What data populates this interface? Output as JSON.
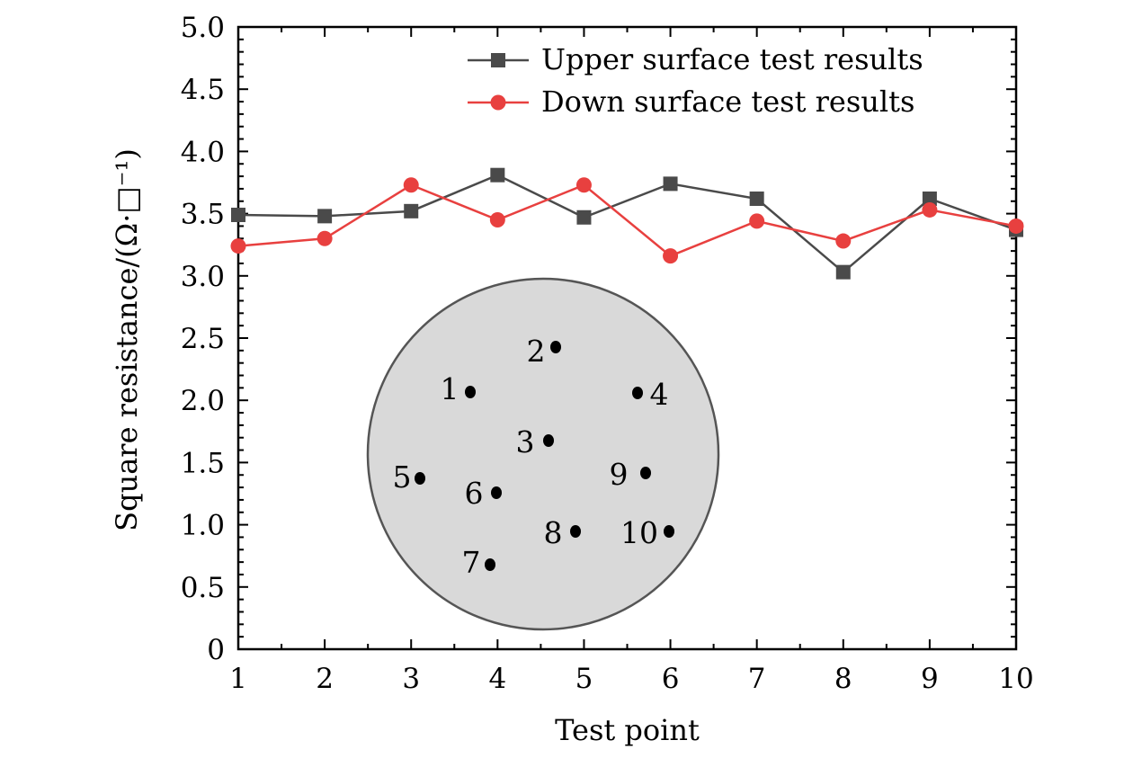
{
  "chart_data": {
    "type": "line",
    "xlabel": "Test point",
    "ylabel": "Square resistance/(Ω·□⁻¹)",
    "x": [
      1,
      2,
      3,
      4,
      5,
      6,
      7,
      8,
      9,
      10
    ],
    "xlim": [
      1,
      10
    ],
    "ylim": [
      0,
      5
    ],
    "x_ticks": [
      "1",
      "2",
      "3",
      "4",
      "5",
      "6",
      "7",
      "8",
      "9",
      "10"
    ],
    "y_ticks": [
      "0",
      "0.5",
      "1.0",
      "1.5",
      "2.0",
      "2.5",
      "3.0",
      "3.5",
      "4.0",
      "4.5",
      "5.0"
    ],
    "grid": false,
    "legend_position": "top-right",
    "series": [
      {
        "name": "Upper surface test results",
        "color": "#4a4a4a",
        "marker": "square",
        "values": [
          3.49,
          3.48,
          3.52,
          3.81,
          3.47,
          3.74,
          3.62,
          3.03,
          3.62,
          3.37
        ]
      },
      {
        "name": "Down surface test results",
        "color": "#e8403f",
        "marker": "circle",
        "values": [
          3.24,
          3.3,
          3.73,
          3.45,
          3.73,
          3.16,
          3.44,
          3.28,
          3.53,
          3.4
        ]
      }
    ],
    "inset": {
      "shape": "circle",
      "fill": "#d9d9d9",
      "points": [
        "1",
        "2",
        "3",
        "4",
        "5",
        "6",
        "7",
        "8",
        "9",
        "10"
      ]
    }
  }
}
